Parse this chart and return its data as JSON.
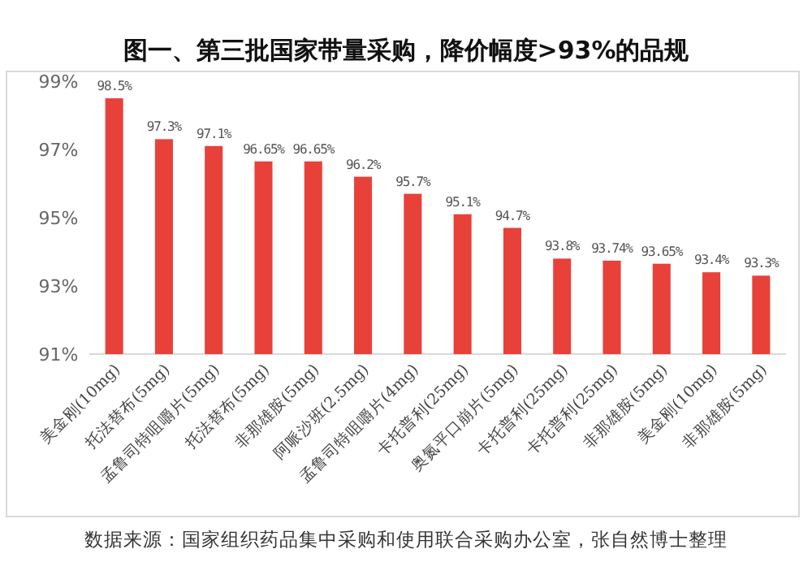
{
  "chart_data": {
    "type": "bar",
    "title": "图一、第三批国家带量采购，降价幅度>93%的品规",
    "categories": [
      "美金刚(10mg)",
      "托法替布(5mg)",
      "孟鲁司特咀嚼片(5mg)",
      "托法替布(5mg)",
      "非那雄胺(5mg)",
      "阿哌沙班(2.5mg)",
      "孟鲁司特咀嚼片(4mg)",
      "卡托普利(25mg)",
      "奥氮平口崩片(5mg)",
      "卡托普利(25mg)",
      "卡托普利(25mg)",
      "非那雄胺(5mg)",
      "美金刚(10mg)",
      "非那雄胺(5mg)"
    ],
    "values": [
      98.5,
      97.3,
      97.1,
      96.65,
      96.65,
      96.2,
      95.7,
      95.1,
      94.7,
      93.8,
      93.74,
      93.65,
      93.4,
      93.3
    ],
    "value_labels": [
      "98.5%",
      "97.3%",
      "97.1%",
      "96.65%",
      "96.65%",
      "96.2%",
      "95.7%",
      "95.1%",
      "94.7%",
      "93.8%",
      "93.74%",
      "93.65%",
      "93.4%",
      "93.3%"
    ],
    "color": "#e8413a",
    "ylim": [
      91,
      99
    ],
    "yticks": [
      {
        "value": 91,
        "label": "91%"
      },
      {
        "value": 93,
        "label": "93%"
      },
      {
        "value": 95,
        "label": "95%"
      },
      {
        "value": 97,
        "label": "97%"
      },
      {
        "value": 99,
        "label": "99%"
      }
    ],
    "grid": false,
    "annotations": [
      "数据来源：国家组织药品集中采购和使用联合采购办公室，张自然博士整理"
    ]
  }
}
